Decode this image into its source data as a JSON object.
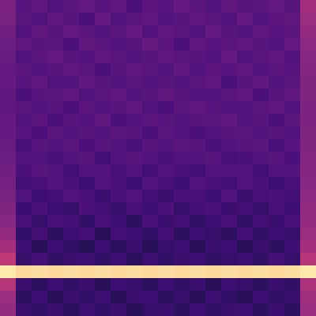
{
  "chart_data": {
    "type": "heatmap",
    "color": "magma",
    "tick_labels": false,
    "clim": [
      0,
      1
    ],
    "cells": [
      [
        0.36,
        0.27,
        0.29,
        0.25,
        0.28,
        0.3,
        0.27,
        0.29,
        0.24,
        0.28,
        0.27,
        0.3,
        0.28,
        0.25,
        0.29,
        0.27,
        0.28,
        0.3,
        0.27,
        0.46
      ],
      [
        0.35,
        0.28,
        0.25,
        0.29,
        0.27,
        0.24,
        0.3,
        0.26,
        0.28,
        0.29,
        0.25,
        0.27,
        0.29,
        0.28,
        0.26,
        0.3,
        0.25,
        0.28,
        0.29,
        0.44
      ],
      [
        0.33,
        0.26,
        0.29,
        0.27,
        0.3,
        0.28,
        0.25,
        0.28,
        0.3,
        0.26,
        0.29,
        0.28,
        0.25,
        0.3,
        0.27,
        0.26,
        0.29,
        0.27,
        0.28,
        0.42
      ],
      [
        0.32,
        0.29,
        0.27,
        0.28,
        0.24,
        0.29,
        0.28,
        0.26,
        0.27,
        0.3,
        0.28,
        0.24,
        0.29,
        0.27,
        0.28,
        0.29,
        0.27,
        0.25,
        0.3,
        0.4
      ],
      [
        0.31,
        0.25,
        0.28,
        0.3,
        0.27,
        0.26,
        0.29,
        0.28,
        0.25,
        0.27,
        0.29,
        0.28,
        0.27,
        0.26,
        0.3,
        0.25,
        0.28,
        0.29,
        0.26,
        0.39
      ],
      [
        0.3,
        0.28,
        0.26,
        0.27,
        0.29,
        0.28,
        0.24,
        0.27,
        0.29,
        0.28,
        0.26,
        0.29,
        0.25,
        0.28,
        0.27,
        0.29,
        0.26,
        0.28,
        0.27,
        0.38
      ],
      [
        0.3,
        0.27,
        0.29,
        0.25,
        0.26,
        0.29,
        0.27,
        0.25,
        0.28,
        0.26,
        0.27,
        0.25,
        0.28,
        0.29,
        0.24,
        0.27,
        0.29,
        0.26,
        0.28,
        0.37
      ],
      [
        0.29,
        0.24,
        0.27,
        0.28,
        0.29,
        0.25,
        0.28,
        0.29,
        0.26,
        0.27,
        0.29,
        0.27,
        0.26,
        0.25,
        0.28,
        0.29,
        0.24,
        0.27,
        0.29,
        0.37
      ],
      [
        0.29,
        0.28,
        0.25,
        0.27,
        0.24,
        0.28,
        0.26,
        0.27,
        0.29,
        0.25,
        0.24,
        0.28,
        0.29,
        0.27,
        0.26,
        0.25,
        0.28,
        0.29,
        0.25,
        0.36
      ],
      [
        0.3,
        0.26,
        0.28,
        0.24,
        0.27,
        0.26,
        0.29,
        0.24,
        0.26,
        0.28,
        0.27,
        0.25,
        0.27,
        0.28,
        0.29,
        0.26,
        0.27,
        0.24,
        0.28,
        0.36
      ],
      [
        0.3,
        0.27,
        0.24,
        0.28,
        0.25,
        0.27,
        0.25,
        0.28,
        0.27,
        0.24,
        0.28,
        0.26,
        0.24,
        0.26,
        0.27,
        0.28,
        0.25,
        0.27,
        0.26,
        0.37
      ],
      [
        0.31,
        0.23,
        0.27,
        0.26,
        0.28,
        0.24,
        0.27,
        0.26,
        0.23,
        0.27,
        0.25,
        0.28,
        0.27,
        0.24,
        0.25,
        0.27,
        0.28,
        0.23,
        0.27,
        0.37
      ],
      [
        0.32,
        0.26,
        0.25,
        0.23,
        0.26,
        0.27,
        0.22,
        0.25,
        0.27,
        0.26,
        0.23,
        0.25,
        0.26,
        0.27,
        0.23,
        0.24,
        0.26,
        0.27,
        0.24,
        0.38
      ],
      [
        0.33,
        0.24,
        0.27,
        0.25,
        0.22,
        0.25,
        0.26,
        0.23,
        0.25,
        0.22,
        0.26,
        0.24,
        0.22,
        0.25,
        0.26,
        0.25,
        0.22,
        0.25,
        0.26,
        0.38
      ],
      [
        0.34,
        0.22,
        0.23,
        0.26,
        0.24,
        0.21,
        0.25,
        0.24,
        0.21,
        0.25,
        0.23,
        0.21,
        0.25,
        0.23,
        0.22,
        0.26,
        0.24,
        0.21,
        0.23,
        0.39
      ],
      [
        0.35,
        0.25,
        0.21,
        0.22,
        0.25,
        0.23,
        0.2,
        0.24,
        0.25,
        0.22,
        0.2,
        0.24,
        0.23,
        0.21,
        0.25,
        0.2,
        0.23,
        0.24,
        0.22,
        0.4
      ],
      [
        0.37,
        0.2,
        0.24,
        0.21,
        0.19,
        0.24,
        0.22,
        0.19,
        0.23,
        0.21,
        0.24,
        0.19,
        0.22,
        0.24,
        0.2,
        0.22,
        0.19,
        0.23,
        0.21,
        0.41
      ],
      [
        0.39,
        0.23,
        0.19,
        0.23,
        0.22,
        0.18,
        0.23,
        0.21,
        0.17,
        0.23,
        0.2,
        0.22,
        0.18,
        0.21,
        0.23,
        0.18,
        0.22,
        0.2,
        0.23,
        0.42
      ],
      [
        0.42,
        0.18,
        0.22,
        0.17,
        0.21,
        0.22,
        0.16,
        0.22,
        0.21,
        0.18,
        0.22,
        0.17,
        0.21,
        0.19,
        0.17,
        0.22,
        0.18,
        0.21,
        0.19,
        0.44
      ],
      [
        0.46,
        0.21,
        0.16,
        0.21,
        0.18,
        0.15,
        0.21,
        0.17,
        0.2,
        0.16,
        0.19,
        0.21,
        0.16,
        0.2,
        0.21,
        0.16,
        0.2,
        0.17,
        0.21,
        0.46
      ],
      [
        0.52,
        0.19,
        0.22,
        0.18,
        0.2,
        0.21,
        0.18,
        0.21,
        0.17,
        0.21,
        0.18,
        0.2,
        0.21,
        0.18,
        0.19,
        0.21,
        0.18,
        0.22,
        0.19,
        0.5
      ],
      [
        0.96,
        0.92,
        0.93,
        0.92,
        0.93,
        0.92,
        0.93,
        0.92,
        0.93,
        0.92,
        0.93,
        0.92,
        0.93,
        0.92,
        0.93,
        0.92,
        0.93,
        0.92,
        0.93,
        0.96
      ],
      [
        0.5,
        0.2,
        0.17,
        0.21,
        0.18,
        0.2,
        0.16,
        0.21,
        0.19,
        0.17,
        0.21,
        0.18,
        0.2,
        0.16,
        0.21,
        0.19,
        0.17,
        0.2,
        0.18,
        0.48
      ],
      [
        0.44,
        0.17,
        0.21,
        0.16,
        0.2,
        0.18,
        0.21,
        0.16,
        0.2,
        0.21,
        0.17,
        0.19,
        0.16,
        0.21,
        0.18,
        0.16,
        0.21,
        0.18,
        0.2,
        0.45
      ],
      [
        0.42,
        0.2,
        0.18,
        0.2,
        0.17,
        0.21,
        0.18,
        0.2,
        0.16,
        0.19,
        0.2,
        0.17,
        0.21,
        0.18,
        0.2,
        0.21,
        0.17,
        0.2,
        0.17,
        0.43
      ]
    ]
  }
}
